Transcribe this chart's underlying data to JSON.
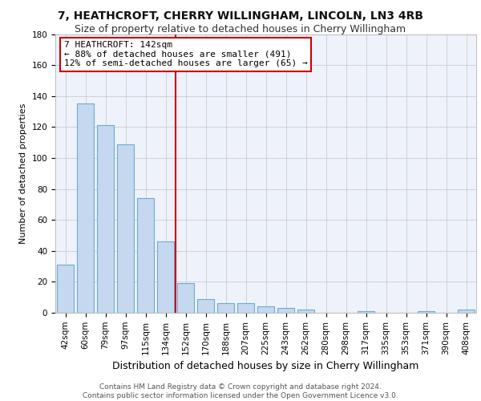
{
  "title": "7, HEATHCROFT, CHERRY WILLINGHAM, LINCOLN, LN3 4RB",
  "subtitle": "Size of property relative to detached houses in Cherry Willingham",
  "xlabel": "Distribution of detached houses by size in Cherry Willingham",
  "ylabel": "Number of detached properties",
  "categories": [
    "42sqm",
    "60sqm",
    "79sqm",
    "97sqm",
    "115sqm",
    "134sqm",
    "152sqm",
    "170sqm",
    "188sqm",
    "207sqm",
    "225sqm",
    "243sqm",
    "262sqm",
    "280sqm",
    "298sqm",
    "317sqm",
    "335sqm",
    "353sqm",
    "371sqm",
    "390sqm",
    "408sqm"
  ],
  "values": [
    31,
    135,
    121,
    109,
    74,
    46,
    19,
    9,
    6,
    6,
    4,
    3,
    2,
    0,
    0,
    1,
    0,
    0,
    1,
    0,
    2
  ],
  "bar_color": "#c5d8ef",
  "bar_edge_color": "#6aabd2",
  "vline_color": "#cc0000",
  "annotation_lines": [
    "7 HEATHCROFT: 142sqm",
    "← 88% of detached houses are smaller (491)",
    "12% of semi-detached houses are larger (65) →"
  ],
  "annotation_box_color": "#ffffff",
  "annotation_box_edge": "#cc0000",
  "ylim": [
    0,
    180
  ],
  "yticks": [
    0,
    20,
    40,
    60,
    80,
    100,
    120,
    140,
    160,
    180
  ],
  "grid_color": "#cccccc",
  "background_color": "#eef2fb",
  "footer": "Contains HM Land Registry data © Crown copyright and database right 2024.\nContains public sector information licensed under the Open Government Licence v3.0.",
  "title_fontsize": 10,
  "subtitle_fontsize": 9,
  "xlabel_fontsize": 9,
  "ylabel_fontsize": 8,
  "tick_fontsize": 7.5,
  "annotation_fontsize": 8,
  "footer_fontsize": 6.5
}
